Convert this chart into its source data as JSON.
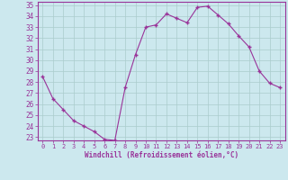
{
  "x": [
    0,
    1,
    2,
    3,
    4,
    5,
    6,
    7,
    8,
    9,
    10,
    11,
    12,
    13,
    14,
    15,
    16,
    17,
    18,
    19,
    20,
    21,
    22,
    23
  ],
  "y": [
    28.5,
    26.5,
    25.5,
    24.5,
    24.0,
    23.5,
    22.8,
    22.7,
    27.5,
    30.5,
    33.0,
    33.2,
    34.2,
    33.8,
    33.4,
    34.8,
    34.9,
    34.1,
    33.3,
    32.2,
    31.2,
    29.0,
    27.9,
    27.5
  ],
  "line_color": "#993399",
  "marker": "+",
  "bg_color": "#cce8ee",
  "grid_color": "#aacccc",
  "xlabel": "Windchill (Refroidissement éolien,°C)",
  "xlabel_color": "#993399",
  "tick_color": "#993399",
  "spine_color": "#993399",
  "ylim": [
    23,
    35
  ],
  "yticks": [
    23,
    24,
    25,
    26,
    27,
    28,
    29,
    30,
    31,
    32,
    33,
    34,
    35
  ],
  "xticks": [
    0,
    1,
    2,
    3,
    4,
    5,
    6,
    7,
    8,
    9,
    10,
    11,
    12,
    13,
    14,
    15,
    16,
    17,
    18,
    19,
    20,
    21,
    22,
    23
  ]
}
